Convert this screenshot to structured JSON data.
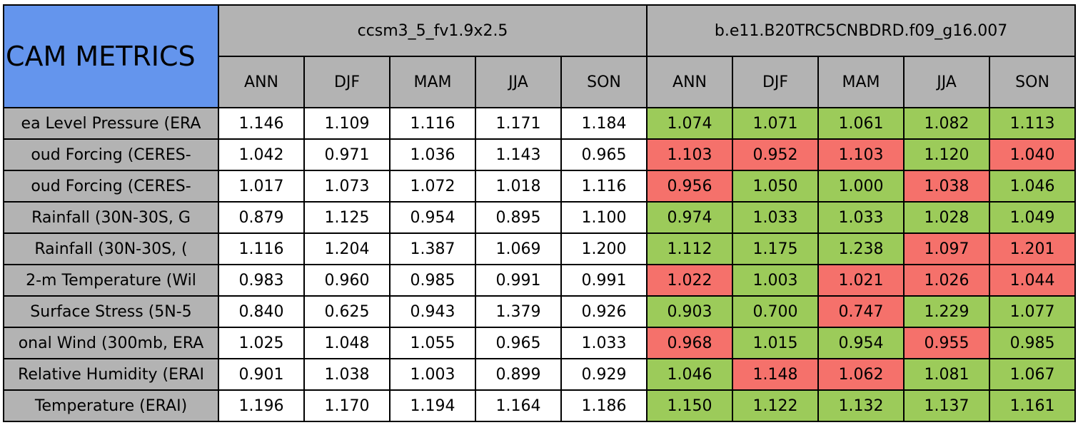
{
  "table": {
    "title": "CAM METRICS",
    "groups": [
      {
        "name": "ccsm3_5_fv1.9x2.5",
        "seasons": [
          "ANN",
          "DJF",
          "MAM",
          "JJA",
          "SON"
        ]
      },
      {
        "name": "b.e11.B20TRC5CNBDRD.f09_g16.007",
        "seasons": [
          "ANN",
          "DJF",
          "MAM",
          "JJA",
          "SON"
        ]
      }
    ],
    "rows": [
      {
        "label": "ea Level Pressure (ERA",
        "values": [
          "1.146",
          "1.109",
          "1.116",
          "1.171",
          "1.184",
          "1.074",
          "1.071",
          "1.061",
          "1.082",
          "1.113"
        ],
        "colors": [
          "#9ccb5a",
          "#9ccb5a",
          "#9ccb5a",
          "#9ccb5a",
          "#9ccb5a"
        ]
      },
      {
        "label": "oud Forcing (CERES-",
        "values": [
          "1.042",
          "0.971",
          "1.036",
          "1.143",
          "0.965",
          "1.103",
          "0.952",
          "1.103",
          "1.120",
          "1.040"
        ],
        "colors": [
          "#f5716b",
          "#f5716b",
          "#f5716b",
          "#9ccb5a",
          "#f5716b"
        ]
      },
      {
        "label": "oud Forcing (CERES-",
        "values": [
          "1.017",
          "1.073",
          "1.072",
          "1.018",
          "1.116",
          "0.956",
          "1.050",
          "1.000",
          "1.038",
          "1.046"
        ],
        "colors": [
          "#f5716b",
          "#9ccb5a",
          "#9ccb5a",
          "#f5716b",
          "#9ccb5a"
        ]
      },
      {
        "label": "Rainfall (30N-30S, G",
        "values": [
          "0.879",
          "1.125",
          "0.954",
          "0.895",
          "1.100",
          "0.974",
          "1.033",
          "1.033",
          "1.028",
          "1.049"
        ],
        "colors": [
          "#9ccb5a",
          "#9ccb5a",
          "#9ccb5a",
          "#9ccb5a",
          "#9ccb5a"
        ]
      },
      {
        "label": "Rainfall (30N-30S, (",
        "values": [
          "1.116",
          "1.204",
          "1.387",
          "1.069",
          "1.200",
          "1.112",
          "1.175",
          "1.238",
          "1.097",
          "1.201"
        ],
        "colors": [
          "#9ccb5a",
          "#9ccb5a",
          "#9ccb5a",
          "#f5716b",
          "#f5716b"
        ]
      },
      {
        "label": "2-m Temperature (Wil",
        "values": [
          "0.983",
          "0.960",
          "0.985",
          "0.991",
          "0.991",
          "1.022",
          "1.003",
          "1.021",
          "1.026",
          "1.044"
        ],
        "colors": [
          "#f5716b",
          "#9ccb5a",
          "#f5716b",
          "#f5716b",
          "#f5716b"
        ]
      },
      {
        "label": "Surface Stress (5N-5",
        "values": [
          "0.840",
          "0.625",
          "0.943",
          "1.379",
          "0.926",
          "0.903",
          "0.700",
          "0.747",
          "1.229",
          "1.077"
        ],
        "colors": [
          "#9ccb5a",
          "#9ccb5a",
          "#f5716b",
          "#9ccb5a",
          "#9ccb5a"
        ]
      },
      {
        "label": "onal Wind (300mb, ERA",
        "values": [
          "1.025",
          "1.048",
          "1.055",
          "0.965",
          "1.033",
          "0.968",
          "1.015",
          "0.954",
          "0.955",
          "0.985"
        ],
        "colors": [
          "#f5716b",
          "#9ccb5a",
          "#9ccb5a",
          "#f5716b",
          "#9ccb5a"
        ]
      },
      {
        "label": "Relative Humidity (ERAI",
        "values": [
          "0.901",
          "1.038",
          "1.003",
          "0.899",
          "0.929",
          "1.046",
          "1.148",
          "1.062",
          "1.081",
          "1.067"
        ],
        "colors": [
          "#9ccb5a",
          "#f5716b",
          "#f5716b",
          "#9ccb5a",
          "#9ccb5a"
        ]
      },
      {
        "label": "Temperature (ERAI)",
        "values": [
          "1.196",
          "1.170",
          "1.194",
          "1.164",
          "1.186",
          "1.150",
          "1.122",
          "1.132",
          "1.137",
          "1.161"
        ],
        "colors": [
          "#9ccb5a",
          "#9ccb5a",
          "#9ccb5a",
          "#9ccb5a",
          "#9ccb5a"
        ]
      }
    ]
  }
}
